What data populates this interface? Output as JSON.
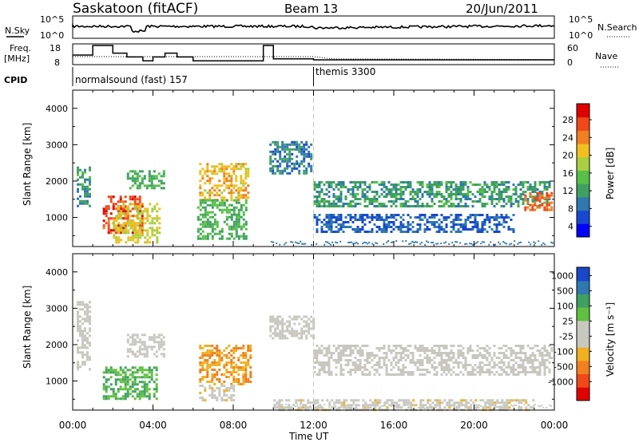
{
  "header": {
    "station": "Saskatoon (fitACF)",
    "beam": "Beam 13",
    "date": "20/Jun/2011"
  },
  "noise_panel": {
    "left_label": "N.Sky",
    "right_label": "N.Search",
    "left_ticks": [
      "10^5",
      "10^0"
    ],
    "right_ticks": [
      "10^5",
      "10^0"
    ]
  },
  "freq_panel": {
    "left_label_1": "Freq.",
    "left_label_2": "[MHz]",
    "right_label": "Nave",
    "left_ticks": [
      "18",
      "8"
    ],
    "right_ticks": [
      "60",
      "0"
    ]
  },
  "cpid": {
    "label": "CPID",
    "mode_1": "normalsound (fast) 157",
    "mode_2": "themis 3300",
    "mode_2_start_hour": 12.0
  },
  "x_axis": {
    "label": "Time UT",
    "ticks": [
      "00:00",
      "04:00",
      "08:00",
      "12:00",
      "16:00",
      "20:00",
      "00:00"
    ]
  },
  "power_panel": {
    "ylabel": "Slant Range [km]",
    "cbar_label": "Power [dB]",
    "cbar_ticks": [
      "28",
      "24",
      "20",
      "16",
      "12",
      "8",
      "4"
    ],
    "cbar_colors": [
      "#0000ff",
      "#1848d0",
      "#2f78b0",
      "#3fa060",
      "#58c048",
      "#a8d040",
      "#f0c020",
      "#f08020",
      "#f04818",
      "#e00000"
    ]
  },
  "velocity_panel": {
    "ylabel": "Slant Range [km]",
    "cbar_label": "Velocity [m s⁻¹]",
    "cbar_ticks": [
      "1000",
      "500",
      "100",
      "25",
      "-25",
      "-100",
      "-500",
      "-1000"
    ],
    "cbar_colors": [
      "#e00000",
      "#f04818",
      "#f08020",
      "#f0b020",
      "#c8c8c0",
      "#c8c8c0",
      "#60c040",
      "#3fa060",
      "#2f78b0",
      "#1848c8"
    ]
  },
  "chart_data": {
    "type": "heatmap",
    "title": "Saskatoon (fitACF)",
    "xlabel": "Time UT",
    "ylabel": "Slant Range [km]",
    "xlim": [
      0,
      24
    ],
    "ylim": [
      200,
      4500
    ],
    "y_ticks": [
      1000,
      2000,
      3000,
      4000
    ],
    "series": [
      {
        "name": "Power [dB]",
        "regions": [
          {
            "t0": 0.2,
            "t1": 0.9,
            "r0": 1300,
            "r1": 2400,
            "value": 10
          },
          {
            "t0": 1.5,
            "t1": 3.5,
            "r0": 600,
            "r1": 1600,
            "value": 26
          },
          {
            "t0": 2.0,
            "t1": 4.3,
            "r0": 300,
            "r1": 1400,
            "value": 18
          },
          {
            "t0": 2.7,
            "t1": 4.6,
            "r0": 1800,
            "r1": 2300,
            "value": 12
          },
          {
            "t0": 6.3,
            "t1": 8.8,
            "r0": 1500,
            "r1": 2500,
            "value": 20
          },
          {
            "t0": 6.2,
            "t1": 8.7,
            "r0": 400,
            "r1": 1500,
            "value": 12
          },
          {
            "t0": 9.8,
            "t1": 11.9,
            "r0": 2200,
            "r1": 3100,
            "value": 8
          },
          {
            "t0": 12.0,
            "t1": 23.8,
            "r0": 1300,
            "r1": 2000,
            "value": 10
          },
          {
            "t0": 12.0,
            "t1": 22.0,
            "r0": 600,
            "r1": 1100,
            "value": 6
          },
          {
            "t0": 22.5,
            "t1": 23.9,
            "r0": 1200,
            "r1": 1700,
            "value": 24
          }
        ]
      },
      {
        "name": "Velocity [m s⁻¹]",
        "regions": [
          {
            "t0": 0.2,
            "t1": 0.9,
            "r0": 1300,
            "r1": 3200,
            "value": 0
          },
          {
            "t0": 1.5,
            "t1": 4.2,
            "r0": 500,
            "r1": 1400,
            "value": 400
          },
          {
            "t0": 2.7,
            "t1": 4.6,
            "r0": 1700,
            "r1": 2300,
            "value": 0
          },
          {
            "t0": 6.3,
            "t1": 8.9,
            "r0": 900,
            "r1": 2000,
            "value": -400
          },
          {
            "t0": 6.3,
            "t1": 8.0,
            "r0": 500,
            "r1": 900,
            "value": -60
          },
          {
            "t0": 9.8,
            "t1": 12.0,
            "r0": 2200,
            "r1": 2800,
            "value": 0
          },
          {
            "t0": 12.0,
            "t1": 23.9,
            "r0": 1200,
            "r1": 2000,
            "value": 0
          },
          {
            "t0": 10.0,
            "t1": 23.0,
            "r0": 200,
            "r1": 500,
            "value": -60
          }
        ]
      }
    ],
    "freq_mhz": [
      {
        "t": 0.0,
        "v": 13
      },
      {
        "t": 1.0,
        "v": 18
      },
      {
        "t": 2.0,
        "v": 14
      },
      {
        "t": 2.7,
        "v": 12
      },
      {
        "t": 3.5,
        "v": 10
      },
      {
        "t": 4.0,
        "v": 12
      },
      {
        "t": 4.6,
        "v": 14
      },
      {
        "t": 5.2,
        "v": 12
      },
      {
        "t": 6.0,
        "v": 10
      },
      {
        "t": 9.1,
        "v": 10
      },
      {
        "t": 9.5,
        "v": 18
      },
      {
        "t": 10.0,
        "v": 11
      },
      {
        "t": 12.0,
        "v": 10.5
      },
      {
        "t": 24.0,
        "v": 10.5
      }
    ],
    "nave": [
      {
        "t": 0.0,
        "v": 25
      },
      {
        "t": 12.0,
        "v": 25
      },
      {
        "t": 13.0,
        "v": 18
      },
      {
        "t": 24.0,
        "v": 16
      }
    ]
  }
}
